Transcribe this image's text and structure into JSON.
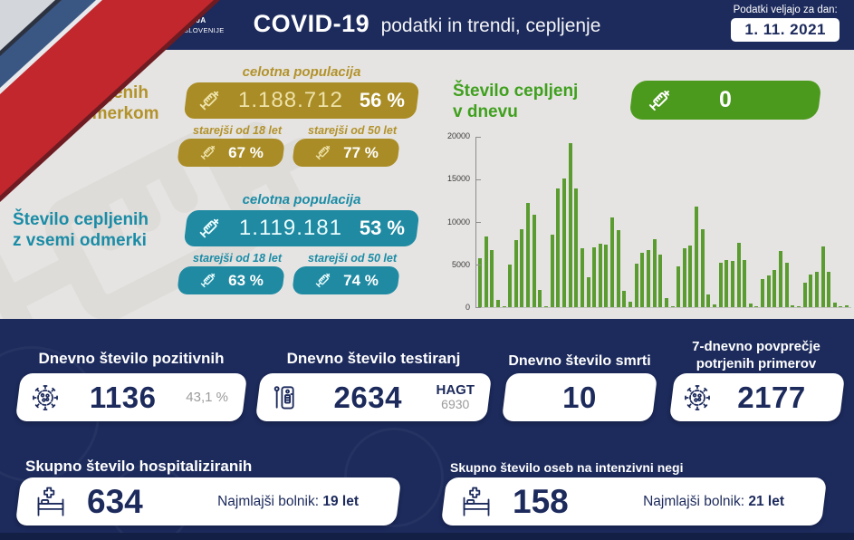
{
  "header": {
    "gov_line1": "REPUBLIKA SLOVENIJA",
    "gov_line2": "VLADA REPUBLIKE SLOVENIJE",
    "title_bold": "COVID-19",
    "title_rest": "podatki in trendi, cepljenje",
    "date_label": "Podatki veljajo za dan:",
    "date_value": "1. 11. 2021"
  },
  "vaccination": {
    "first_dose": {
      "title_line1": "Število cepljenih",
      "title_line2": "z enim odmerkom",
      "population_label": "celotna populacija",
      "count": "1.188.712",
      "percent": "56 %",
      "over18_label": "starejši od 18 let",
      "over18_percent": "67 %",
      "over50_label": "starejši od 50 let",
      "over50_percent": "77 %"
    },
    "all_doses": {
      "title_line1": "Število cepljenih",
      "title_line2": "z vsemi odmerki",
      "population_label": "celotna populacija",
      "count": "1.119.181",
      "percent": "53 %",
      "over18_label": "starejši od 18 let",
      "over18_percent": "63 %",
      "over50_label": "starejši od 50 let",
      "over50_percent": "74 %"
    },
    "daily": {
      "title_line1": "Število cepljenj",
      "title_line2": "v dnevu",
      "value": "0"
    }
  },
  "chart_data": {
    "type": "bar",
    "title": "Število cepljenj v dnevu",
    "xlabel": "",
    "ylabel": "",
    "x_labels": [],
    "values": [
      5700,
      8300,
      6700,
      800,
      100,
      5000,
      7900,
      9200,
      12200,
      10900,
      2000,
      100,
      8500,
      13900,
      15100,
      19300,
      13900,
      6900,
      3500,
      7000,
      7400,
      7300,
      10500,
      9000,
      1900,
      600,
      5100,
      6400,
      6700,
      8000,
      6200,
      1100,
      100,
      4800,
      6900,
      7200,
      11800,
      9100,
      1500,
      300,
      5200,
      5500,
      5400,
      7600,
      5500,
      400,
      100,
      3300,
      3700,
      4400,
      6600,
      5200,
      200,
      100,
      2900,
      3800,
      4100,
      7100,
      4200,
      500,
      150,
      250
    ],
    "ylim": [
      0,
      20000
    ],
    "yticks": [
      0,
      5000,
      10000,
      15000,
      20000
    ],
    "bar_color": "#5b9c31",
    "grid": "off",
    "legend": "none"
  },
  "daily_stats": {
    "positive": {
      "title": "Dnevno število pozitivnih",
      "value": "1136",
      "share": "43,1 %"
    },
    "tests": {
      "title": "Dnevno število testiranj",
      "value": "2634",
      "hagt_label": "HAGT",
      "hagt_value": "6930"
    },
    "deaths": {
      "title": "Dnevno število smrti",
      "value": "10"
    },
    "week_avg": {
      "title_line1": "7-dnevno povprečje",
      "title_line2": "potrjenih primerov",
      "value": "2177"
    }
  },
  "hospitalizations": {
    "total": {
      "title": "Skupno število hospitaliziranih",
      "value": "634",
      "youngest_label": "Najmlajši bolnik:",
      "youngest_value": "19 let"
    },
    "icu": {
      "title": "Skupno število oseb na intenzivni negi",
      "value": "158",
      "youngest_label": "Najmlajši bolnik:",
      "youngest_value": "21 let"
    }
  },
  "icons": [
    "syringe-icon",
    "virus-icon",
    "test-cassette-icon",
    "hospital-bed-icon",
    "coat-of-arms-icon"
  ],
  "colors": {
    "navy": "#1c2a5c",
    "navy_dark": "#141f46",
    "gold": "#a98c25",
    "gold_text": "#b2922b",
    "gold_light": "#eee2a9",
    "teal": "#1f8aa2",
    "teal_text": "#1b8ca6",
    "green": "#4c9a1d",
    "green_text": "#3fa01e",
    "bar_green": "#5b9c31",
    "background": "#e6e4e2",
    "flag_red": "#c1272d",
    "flag_blue": "#3a5784",
    "flag_silver": "#d3d6da"
  }
}
